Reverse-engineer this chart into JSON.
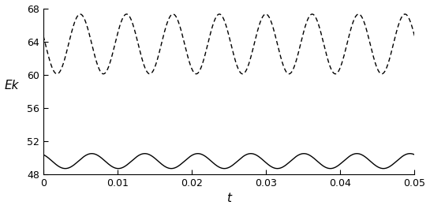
{
  "title": "",
  "xlabel": "t",
  "ylabel": "Ek",
  "xlim": [
    0,
    0.05
  ],
  "ylim": [
    48,
    68
  ],
  "xticks": [
    0,
    0.01,
    0.02,
    0.03,
    0.04,
    0.05
  ],
  "yticks": [
    48,
    52,
    56,
    60,
    64,
    68
  ],
  "xtick_labels": [
    "0",
    "0.01",
    "0.02",
    "0.03",
    "0.04",
    "0.05"
  ],
  "ytick_labels": [
    "48",
    "52",
    "56",
    "60",
    "64",
    "68"
  ],
  "solid_mean": 49.6,
  "solid_amp": 0.9,
  "solid_freq": 140,
  "solid_phase": 0.55,
  "dashed_mean": 63.7,
  "dashed_amp": 3.6,
  "dashed_freq": 160,
  "dashed_phase": 1.3,
  "line_color": "#000000",
  "background_color": "#ffffff",
  "linewidth": 1.0
}
